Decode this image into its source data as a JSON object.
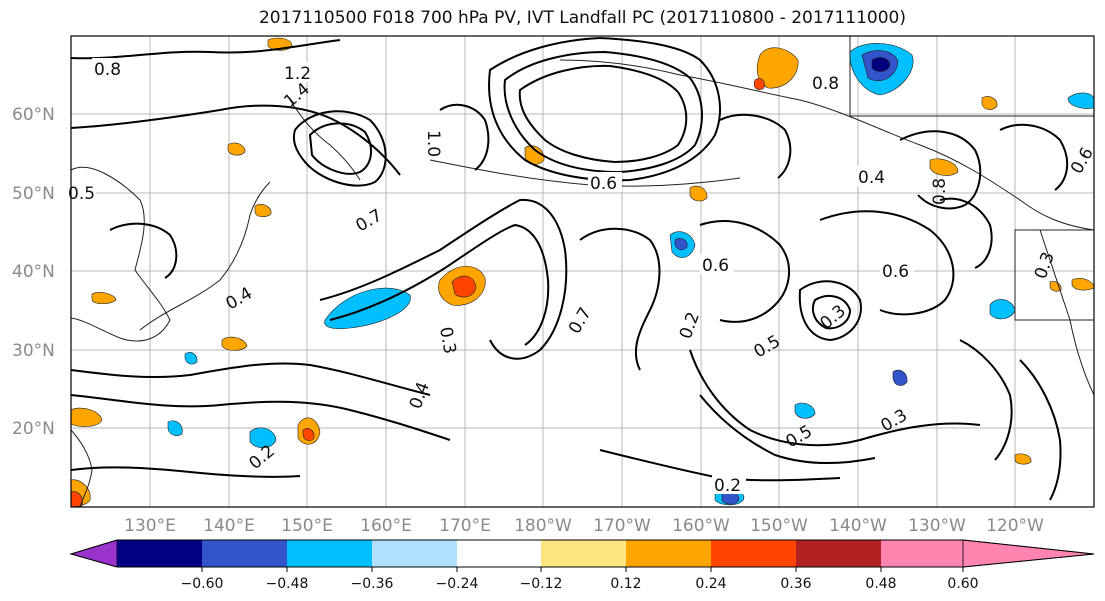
{
  "title": "2017110500 F018 700 hPa PV, IVT Landfall PC (2017110800 - 2017111000)",
  "latitude_labels": [
    "60°N",
    "50°N",
    "40°N",
    "30°N",
    "20°N"
  ],
  "longitude_labels": [
    "130°E",
    "140°E",
    "150°E",
    "160°E",
    "170°E",
    "180°W",
    "170°W",
    "160°W",
    "150°W",
    "140°W",
    "130°W",
    "120°W"
  ],
  "colorbar": {
    "tick_labels": [
      "−0.60",
      "−0.48",
      "−0.36",
      "−0.24",
      "−0.12",
      "0.12",
      "0.24",
      "0.36",
      "0.48",
      "0.60"
    ],
    "colors": [
      "#9933cc",
      "#000080",
      "#3355cc",
      "#00bfff",
      "#b0e0ff",
      "#ffffff",
      "#ffe680",
      "#ffa500",
      "#ff4500",
      "#b22222",
      "#ff85b0"
    ]
  },
  "contour_labels": [
    "0.8",
    "1.2",
    "1.4",
    "0.5",
    "0.4",
    "0.6",
    "0.7",
    "0.3",
    "0.2",
    "1.0",
    "0.8",
    "0.6",
    "0.4",
    "0.6",
    "0.7",
    "0.5",
    "0.3",
    "0.2",
    "0.4",
    "0.5",
    "0.3",
    "0.2",
    "0.8",
    "0.6",
    "0.3"
  ]
}
